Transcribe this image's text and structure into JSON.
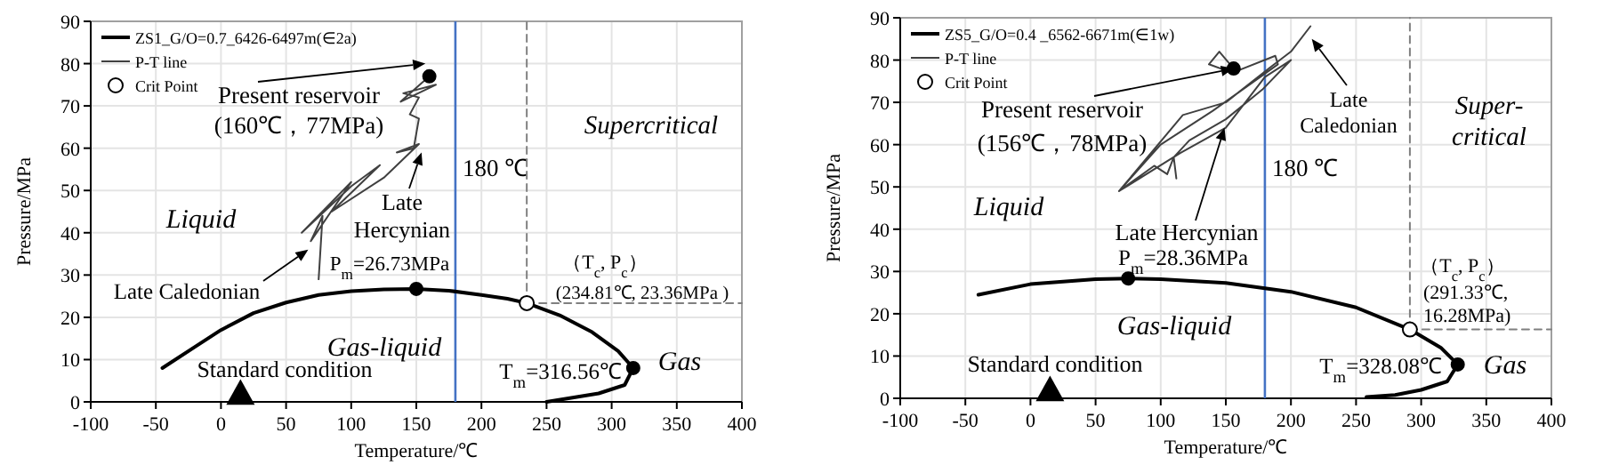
{
  "chart_data": [
    {
      "type": "line",
      "xlabel": "Temperature/℃",
      "ylabel": "Pressure/MPa",
      "xlim": [
        -100,
        400
      ],
      "ylim": [
        0,
        90
      ],
      "xticks": [
        -100,
        -50,
        0,
        50,
        100,
        150,
        200,
        250,
        300,
        350,
        400
      ],
      "yticks": [
        0,
        10,
        20,
        30,
        40,
        50,
        60,
        70,
        80,
        90
      ],
      "grid": true,
      "legend": "top left",
      "series": [
        {
          "name": "ZS1_G/O=0.7_6426-6497m(∈2a)",
          "color": "#000000",
          "x": [
            -45,
            -20,
            0,
            25,
            50,
            75,
            100,
            125,
            150,
            175,
            200,
            220,
            234.81,
            260,
            285,
            305,
            316.56,
            310,
            290,
            270,
            250
          ],
          "values": [
            8,
            13,
            17,
            21,
            23.5,
            25.3,
            26.2,
            26.6,
            26.73,
            26.3,
            25.3,
            24.4,
            23.36,
            20.5,
            16.5,
            12,
            8,
            4,
            2,
            1,
            0
          ]
        },
        {
          "name": "P-T line",
          "color": "#404040",
          "x": [
            75,
            78,
            69,
            100,
            62,
            100,
            122,
            85,
            125,
            152,
            135,
            148,
            152,
            145,
            152,
            140,
            165,
            138,
            160
          ],
          "values": [
            29,
            44,
            38,
            52,
            40,
            51,
            56,
            45,
            53,
            61,
            59,
            60,
            67,
            68,
            72,
            73,
            75,
            71,
            77
          ]
        },
        {
          "name": "Crit Point",
          "type": "scatter",
          "marker": "circle",
          "color": "#000000",
          "x": [
            234.81
          ],
          "values": [
            23.36
          ]
        },
        {
          "type": "scatter",
          "marker": "circle",
          "color": "#000000",
          "x": [
            150,
            316.56,
            160
          ],
          "values": [
            26.73,
            8,
            77
          ]
        },
        {
          "type": "scatter",
          "marker": "triangle",
          "color": "#000000",
          "x": [
            15
          ],
          "values": [
            2
          ]
        },
        {
          "color": "#808080",
          "line_style": "dashed",
          "x": [
            234.81,
            234.81
          ],
          "values": [
            23.36,
            90
          ]
        },
        {
          "color": "#808080",
          "line_style": "dashed",
          "x": [
            234.81,
            400
          ],
          "values": [
            23.36,
            23.36
          ]
        }
      ],
      "ref_lines": [
        {
          "axis": "x",
          "value": 180,
          "label": "180 ℃",
          "color": "#4472c4"
        }
      ],
      "annotations": [
        {
          "text": "Present reservoir",
          "x": 157,
          "y": 80
        },
        "(160℃，77MPa)",
        {
          "text": "Late\nHercynian",
          "x": 154,
          "y": 59
        },
        {
          "text": "Late Caledonian",
          "x": 67,
          "y": 36
        },
        "Liquid",
        "Gas-liquid",
        "Standard condition",
        "P$_{m}$=26.73MPa",
        "T$_{m}$=316.56℃",
        "（T$_{c}$, P$_{c}$）",
        "(234.81℃, 23.36MPa )",
        "Supercritical",
        "Gas"
      ]
    },
    {
      "type": "line",
      "xlabel": "Temperature/℃",
      "ylabel": "Pressure/MPa",
      "xlim": [
        -100,
        400
      ],
      "ylim": [
        0,
        90
      ],
      "xticks": [
        -100,
        -50,
        0,
        50,
        100,
        150,
        200,
        250,
        300,
        350,
        400
      ],
      "yticks": [
        0,
        10,
        20,
        30,
        40,
        50,
        60,
        70,
        80,
        90
      ],
      "grid": true,
      "legend": "top left",
      "series": [
        {
          "name": "ZS5_G/O=0.4 _6562-6671m(∈1w)",
          "color": "#000000",
          "x": [
            -40,
            0,
            50,
            75,
            100,
            150,
            200,
            250,
            291.33,
            315,
            328.08,
            320,
            300,
            280,
            258
          ],
          "values": [
            24.5,
            27,
            28.2,
            28.36,
            28.2,
            27.3,
            25.2,
            21.5,
            16.28,
            12,
            8,
            4,
            2,
            0.8,
            0.3
          ]
        },
        {
          "name": "P-T line",
          "color": "#404040",
          "x": [
            215,
            200,
            183,
            150,
            117,
            68,
            95,
            105,
            110,
            112,
            110,
            122,
            150,
            178,
            200,
            180,
            150,
            115,
            68,
            100,
            140,
            190,
            188,
            155,
            137,
            145,
            156
          ],
          "values": [
            88,
            82,
            78,
            70,
            67,
            49,
            55,
            53,
            57,
            52,
            57,
            61,
            66,
            73,
            80,
            76,
            64,
            58,
            49,
            60,
            68,
            79,
            81,
            77,
            79,
            82,
            78
          ]
        },
        {
          "name": "Crit Point",
          "type": "scatter",
          "marker": "circle",
          "color": "#000000",
          "x": [
            291.33
          ],
          "values": [
            16.28
          ]
        },
        {
          "type": "scatter",
          "marker": "circle",
          "color": "#000000",
          "x": [
            75,
            328.08,
            156
          ],
          "values": [
            28.36,
            8,
            78
          ]
        },
        {
          "type": "scatter",
          "marker": "triangle",
          "color": "#000000",
          "x": [
            15
          ],
          "values": [
            2
          ]
        },
        {
          "color": "#808080",
          "line_style": "dashed",
          "x": [
            291.33,
            291.33
          ],
          "values": [
            16.28,
            90
          ]
        },
        {
          "color": "#808080",
          "line_style": "dashed",
          "x": [
            291.33,
            400
          ],
          "values": [
            16.28,
            16.28
          ]
        }
      ],
      "ref_lines": [
        {
          "axis": "x",
          "value": 180,
          "label": "180 ℃",
          "color": "#4472c4"
        }
      ],
      "annotations": [
        {
          "text": "Present reservoir",
          "x": 156,
          "y": 78
        },
        "(156℃，78MPa)",
        {
          "text": "Late Hercynian",
          "x": 149,
          "y": 64
        },
        {
          "text": "Late\nCaledonian",
          "x": 216,
          "y": 85
        },
        "Liquid",
        "Gas-liquid",
        "Standard condition",
        "P$_{m}$=28.36MPa",
        "T$_{m}$=328.08℃",
        "（T$_{c}$, P$_{c}$）",
        "(291.33℃,\n16.28MPa)",
        "Super-\ncritical",
        "Gas"
      ]
    }
  ]
}
